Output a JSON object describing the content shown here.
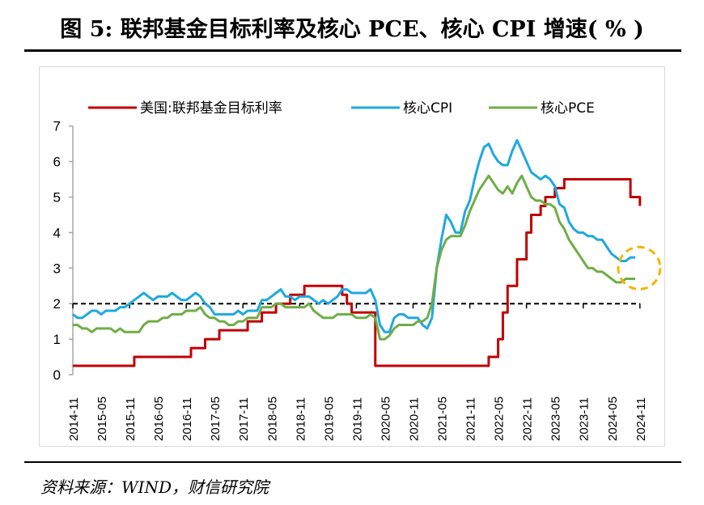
{
  "title": "图 5: 联邦基金目标利率及核心 PCE、核心 CPI 增速( % )",
  "source": "资料来源：WIND，财信研究院",
  "chart_data": {
    "type": "line",
    "title": "",
    "xlabel": "",
    "ylabel": "",
    "ylim": [
      0,
      7
    ],
    "yticks": [
      "0",
      "1",
      "2",
      "3",
      "4",
      "5",
      "6",
      "7"
    ],
    "x_start": "2014-11",
    "xticks": [
      "2014-11",
      "2015-05",
      "2015-11",
      "2016-05",
      "2016-11",
      "2017-05",
      "2017-11",
      "2018-05",
      "2018-11",
      "2019-05",
      "2019-11",
      "2020-05",
      "2020-11",
      "2021-05",
      "2021-11",
      "2022-05",
      "2022-11",
      "2023-05",
      "2023-11",
      "2024-05",
      "2024-11"
    ],
    "legend_position": "top",
    "reference_line": {
      "y": 2,
      "style": "dashed",
      "color": "#000000"
    },
    "highlight": {
      "shape": "dashed-circle",
      "color": "#f5b400",
      "x": "2024-10",
      "y": 3.0
    },
    "series": [
      {
        "name": "美国:联邦基金目标利率",
        "color": "#c00000",
        "step": true,
        "steps": [
          [
            "2014-11",
            0.25
          ],
          [
            "2015-12",
            0.5
          ],
          [
            "2016-12",
            0.75
          ],
          [
            "2017-03",
            1.0
          ],
          [
            "2017-06",
            1.25
          ],
          [
            "2017-12",
            1.5
          ],
          [
            "2018-03",
            1.75
          ],
          [
            "2018-06",
            2.0
          ],
          [
            "2018-09",
            2.25
          ],
          [
            "2018-12",
            2.5
          ],
          [
            "2019-08",
            2.25
          ],
          [
            "2019-09",
            2.0
          ],
          [
            "2019-10",
            1.75
          ],
          [
            "2020-03",
            1.25
          ],
          [
            "2020-03",
            0.25
          ],
          [
            "2022-03",
            0.5
          ],
          [
            "2022-05",
            1.0
          ],
          [
            "2022-06",
            1.75
          ],
          [
            "2022-07",
            2.5
          ],
          [
            "2022-09",
            3.25
          ],
          [
            "2022-11",
            4.0
          ],
          [
            "2022-12",
            4.5
          ],
          [
            "2023-02",
            4.75
          ],
          [
            "2023-03",
            5.0
          ],
          [
            "2023-05",
            5.25
          ],
          [
            "2023-07",
            5.5
          ],
          [
            "2024-09",
            5.0
          ],
          [
            "2024-11",
            4.75
          ]
        ]
      },
      {
        "name": "核心CPI",
        "color": "#1fa8e0",
        "values": [
          1.7,
          1.6,
          1.6,
          1.7,
          1.8,
          1.8,
          1.7,
          1.8,
          1.8,
          1.8,
          1.9,
          1.9,
          2.0,
          2.1,
          2.2,
          2.3,
          2.2,
          2.1,
          2.2,
          2.2,
          2.2,
          2.3,
          2.2,
          2.1,
          2.1,
          2.2,
          2.3,
          2.2,
          2.0,
          1.9,
          1.7,
          1.7,
          1.7,
          1.7,
          1.7,
          1.8,
          1.7,
          1.8,
          1.8,
          1.8,
          2.1,
          2.1,
          2.2,
          2.3,
          2.4,
          2.2,
          2.2,
          2.1,
          2.2,
          2.2,
          2.2,
          2.1,
          2.0,
          2.1,
          2.0,
          2.1,
          2.2,
          2.4,
          2.4,
          2.3,
          2.3,
          2.3,
          2.3,
          2.4,
          2.1,
          1.4,
          1.2,
          1.2,
          1.6,
          1.7,
          1.7,
          1.6,
          1.6,
          1.6,
          1.4,
          1.3,
          1.6,
          3.0,
          3.8,
          4.5,
          4.3,
          4.0,
          4.0,
          4.6,
          4.9,
          5.5,
          6.0,
          6.4,
          6.5,
          6.2,
          6.0,
          5.9,
          5.9,
          6.3,
          6.6,
          6.3,
          6.0,
          5.7,
          5.6,
          5.5,
          5.6,
          5.5,
          5.3,
          4.8,
          4.7,
          4.3,
          4.1,
          4.0,
          4.0,
          3.9,
          3.9,
          3.8,
          3.8,
          3.6,
          3.4,
          3.3,
          3.2,
          3.2,
          3.3,
          3.3
        ]
      },
      {
        "name": "核心PCE",
        "color": "#70ad47",
        "values": [
          1.4,
          1.4,
          1.3,
          1.3,
          1.2,
          1.3,
          1.3,
          1.3,
          1.3,
          1.2,
          1.3,
          1.2,
          1.2,
          1.2,
          1.2,
          1.4,
          1.5,
          1.5,
          1.5,
          1.6,
          1.6,
          1.7,
          1.7,
          1.7,
          1.8,
          1.8,
          1.8,
          1.9,
          1.7,
          1.6,
          1.6,
          1.5,
          1.5,
          1.4,
          1.4,
          1.5,
          1.5,
          1.6,
          1.6,
          1.6,
          1.9,
          1.9,
          1.9,
          2.0,
          2.0,
          1.9,
          1.9,
          1.9,
          1.9,
          1.9,
          2.0,
          1.8,
          1.7,
          1.6,
          1.6,
          1.6,
          1.7,
          1.7,
          1.7,
          1.7,
          1.6,
          1.6,
          1.6,
          1.7,
          1.6,
          1.0,
          1.0,
          1.1,
          1.3,
          1.4,
          1.4,
          1.4,
          1.4,
          1.5,
          1.5,
          1.6,
          2.0,
          3.0,
          3.5,
          3.8,
          3.9,
          3.9,
          3.9,
          4.2,
          4.6,
          4.9,
          5.2,
          5.4,
          5.6,
          5.4,
          5.2,
          5.1,
          5.3,
          5.1,
          5.4,
          5.6,
          5.3,
          5.0,
          4.9,
          4.9,
          4.8,
          4.8,
          4.7,
          4.3,
          4.1,
          3.8,
          3.6,
          3.4,
          3.2,
          3.0,
          3.0,
          2.9,
          2.9,
          2.8,
          2.7,
          2.6,
          2.6,
          2.7,
          2.7,
          2.7
        ]
      }
    ]
  }
}
